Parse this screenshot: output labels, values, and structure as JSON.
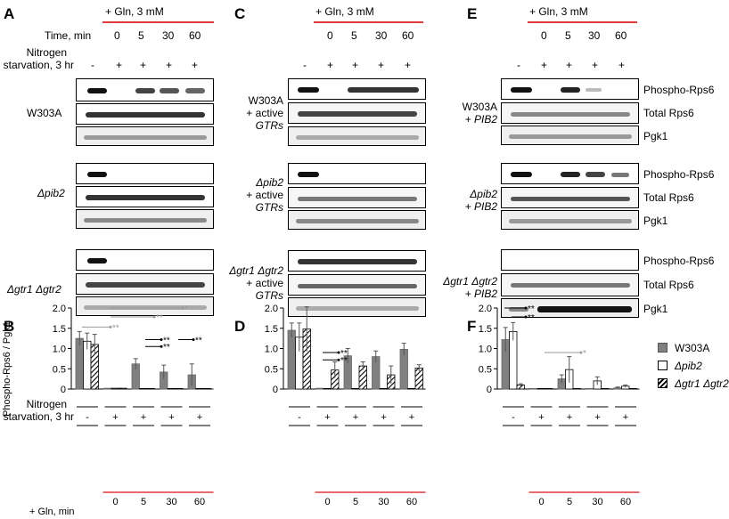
{
  "panels": {
    "A": "A",
    "B": "B",
    "C": "C",
    "D": "D",
    "E": "E",
    "F": "F"
  },
  "header": {
    "gln": "+ Gln, 3 mM",
    "time": "Time, min",
    "times": [
      "0",
      "5",
      "30",
      "60"
    ],
    "nitrogen_line1": "Nitrogen",
    "nitrogen_line2": "starvation, 3 hr",
    "signs": [
      "-",
      "+",
      "+",
      "+",
      "+"
    ]
  },
  "panel_A": {
    "strains": [
      "W303A",
      "Δpib2",
      "Δgtr1 Δgtr2"
    ]
  },
  "panel_C": {
    "strain1_l1": "W303A",
    "strain1_l2": "+ active",
    "strain1_l3": "GTRs",
    "strain2_l1": "Δpib2",
    "strain2_l2": "+ active",
    "strain2_l3": "GTRs",
    "strain3_l1": "Δgtr1 Δgtr2",
    "strain3_l2": "+ active",
    "strain3_l3": "GTRs"
  },
  "panel_E": {
    "strain1_l1": "W303A",
    "strain1_l2": "+ PIB2",
    "strain2_l1": "Δpib2",
    "strain2_l2": "+ PIB2",
    "strain3_l1": "Δgtr1 Δgtr2",
    "strain3_l2": "+ PIB2",
    "row_labels": [
      "Phospho-Rps6",
      "Total Rps6",
      "Pgk1"
    ]
  },
  "footer": {
    "gln_min": "+ Gln, min",
    "times": [
      "0",
      "5",
      "30",
      "60"
    ]
  },
  "legend": {
    "colors": {
      "W303A": "#808080",
      "pib2": "#ffffff",
      "gtr": "hatched"
    }
  },
  "chart_data": [
    {
      "panel": "B",
      "type": "bar",
      "ylabel": "Phospho-Rps6 / Pgk1",
      "ylim": [
        0,
        2.0
      ],
      "yticks": [
        "0",
        "0.5",
        "1.0",
        "1.5",
        "2.0"
      ],
      "categories": [
        "-",
        "0",
        "5",
        "30",
        "60"
      ],
      "series": [
        {
          "name": "W303A",
          "values": [
            1.25,
            0.02,
            0.62,
            0.42,
            0.35
          ],
          "errors": [
            0.17,
            0.01,
            0.13,
            0.17,
            0.27
          ]
        },
        {
          "name": "Δpib2",
          "values": [
            1.18,
            0.02,
            0.01,
            0.01,
            0.01
          ],
          "errors": [
            0.2,
            0.01,
            0.01,
            0.01,
            0.01
          ]
        },
        {
          "name": "Δgtr1 Δgtr2",
          "values": [
            1.1,
            0.02,
            0.01,
            0.01,
            0.01
          ],
          "errors": [
            0.25,
            0.01,
            0.01,
            0.01,
            0.01
          ]
        }
      ],
      "annotations": [
        "*",
        "**",
        "**",
        "**",
        "**",
        "**"
      ]
    },
    {
      "panel": "D",
      "type": "bar",
      "ylim": [
        0,
        2.0
      ],
      "yticks": [
        "0",
        "0.5",
        "1.0",
        "1.5",
        "2.0"
      ],
      "categories": [
        "-",
        "0",
        "5",
        "30",
        "60"
      ],
      "series": [
        {
          "name": "W303A",
          "values": [
            1.45,
            0.02,
            0.82,
            0.8,
            0.98
          ],
          "errors": [
            0.18,
            0.01,
            0.18,
            0.14,
            0.15
          ]
        },
        {
          "name": "Δpib2",
          "values": [
            1.28,
            0.01,
            0.0,
            0.0,
            0.0
          ],
          "errors": [
            0.35,
            0.01,
            0.0,
            0.0,
            0.0
          ]
        },
        {
          "name": "Δgtr1 Δgtr2",
          "values": [
            1.48,
            0.47,
            0.57,
            0.35,
            0.52
          ],
          "errors": [
            0.55,
            0.2,
            0.1,
            0.22,
            0.08
          ]
        }
      ],
      "annotations": [
        "**",
        "**"
      ]
    },
    {
      "panel": "F",
      "type": "bar",
      "ylim": [
        0,
        2.0
      ],
      "yticks": [
        "0",
        "0.5",
        "1.0",
        "1.5",
        "2.0"
      ],
      "categories": [
        "-",
        "0",
        "5",
        "30",
        "60"
      ],
      "series": [
        {
          "name": "W303A",
          "values": [
            1.22,
            0.01,
            0.25,
            0.01,
            0.03
          ],
          "errors": [
            0.3,
            0.01,
            0.1,
            0.01,
            0.02
          ]
        },
        {
          "name": "Δpib2",
          "values": [
            1.42,
            0.01,
            0.48,
            0.2,
            0.07
          ],
          "errors": [
            0.22,
            0.01,
            0.32,
            0.1,
            0.03
          ]
        },
        {
          "name": "Δgtr1 Δgtr2",
          "values": [
            0.1,
            0.0,
            0.01,
            0.01,
            0.01
          ],
          "errors": [
            0.03,
            0.0,
            0.01,
            0.01,
            0.01
          ]
        }
      ],
      "annotations": [
        "**",
        "**",
        "*"
      ],
      "legend": [
        "W303A",
        "Δpib2",
        "Δgtr1 Δgtr2"
      ]
    }
  ]
}
